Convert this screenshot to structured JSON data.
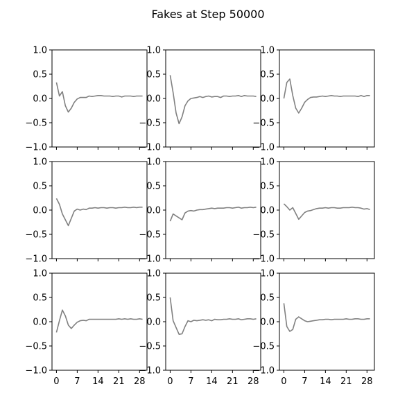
{
  "figure": {
    "title": "Fakes at Step 50000"
  },
  "chart_data": {
    "type": "line",
    "title": "Fakes at Step 50000",
    "layout": "3x3 grid of small line plots",
    "line_color": "#808080",
    "xlim": [
      -1.5,
      30.5
    ],
    "ylim": [
      -1.0,
      1.0
    ],
    "x_ticks": [
      0,
      7,
      14,
      21,
      28
    ],
    "y_ticks": [
      1.0,
      0.5,
      0.0,
      -0.5,
      -1.0
    ],
    "y_tick_labels": [
      "1.0",
      "0.5",
      "0.0",
      "−0.5",
      "−1.0"
    ],
    "x_tick_labels_row": 2,
    "grid": false,
    "legend": false,
    "panels": [
      {
        "row": 0,
        "col": 0,
        "values": [
          0.33,
          0.05,
          0.14,
          -0.15,
          -0.28,
          -0.2,
          -0.08,
          -0.01,
          0.02,
          0.02,
          0.02,
          0.05,
          0.04,
          0.05,
          0.06,
          0.06,
          0.05,
          0.05,
          0.05,
          0.04,
          0.05,
          0.05,
          0.03,
          0.05,
          0.05,
          0.05,
          0.04,
          0.05,
          0.05,
          0.05
        ]
      },
      {
        "row": 0,
        "col": 1,
        "values": [
          0.48,
          0.12,
          -0.3,
          -0.52,
          -0.38,
          -0.15,
          -0.05,
          0.0,
          0.01,
          0.02,
          0.04,
          0.02,
          0.04,
          0.05,
          0.03,
          0.04,
          0.04,
          0.02,
          0.05,
          0.05,
          0.04,
          0.05,
          0.05,
          0.06,
          0.04,
          0.06,
          0.05,
          0.05,
          0.05,
          0.04
        ]
      },
      {
        "row": 0,
        "col": 2,
        "values": [
          0.0,
          0.33,
          0.4,
          0.06,
          -0.2,
          -0.3,
          -0.2,
          -0.08,
          -0.02,
          0.02,
          0.03,
          0.03,
          0.04,
          0.05,
          0.04,
          0.05,
          0.06,
          0.05,
          0.05,
          0.04,
          0.05,
          0.05,
          0.05,
          0.05,
          0.05,
          0.04,
          0.06,
          0.04,
          0.06,
          0.06
        ]
      },
      {
        "row": 1,
        "col": 0,
        "values": [
          0.24,
          0.12,
          -0.08,
          -0.2,
          -0.32,
          -0.17,
          -0.02,
          0.02,
          0.0,
          0.02,
          0.01,
          0.04,
          0.04,
          0.05,
          0.04,
          0.05,
          0.05,
          0.04,
          0.05,
          0.05,
          0.04,
          0.05,
          0.05,
          0.06,
          0.05,
          0.05,
          0.06,
          0.05,
          0.06,
          0.06
        ]
      },
      {
        "row": 1,
        "col": 1,
        "values": [
          -0.23,
          -0.08,
          -0.12,
          -0.16,
          -0.2,
          -0.06,
          -0.02,
          -0.01,
          -0.02,
          0.0,
          0.01,
          0.01,
          0.02,
          0.03,
          0.04,
          0.03,
          0.04,
          0.04,
          0.04,
          0.05,
          0.05,
          0.04,
          0.05,
          0.06,
          0.04,
          0.05,
          0.05,
          0.06,
          0.05,
          0.06
        ]
      },
      {
        "row": 1,
        "col": 2,
        "values": [
          0.13,
          0.07,
          0.0,
          0.05,
          -0.07,
          -0.19,
          -0.12,
          -0.05,
          -0.02,
          -0.01,
          0.01,
          0.03,
          0.04,
          0.04,
          0.05,
          0.04,
          0.05,
          0.05,
          0.04,
          0.04,
          0.05,
          0.05,
          0.05,
          0.06,
          0.05,
          0.05,
          0.04,
          0.02,
          0.03,
          0.01
        ]
      },
      {
        "row": 2,
        "col": 0,
        "values": [
          -0.22,
          0.02,
          0.24,
          0.12,
          -0.07,
          -0.14,
          -0.07,
          -0.01,
          0.02,
          0.03,
          0.02,
          0.05,
          0.05,
          0.05,
          0.05,
          0.05,
          0.05,
          0.05,
          0.05,
          0.05,
          0.05,
          0.06,
          0.05,
          0.06,
          0.05,
          0.06,
          0.05,
          0.05,
          0.06,
          0.05
        ]
      },
      {
        "row": 2,
        "col": 1,
        "values": [
          0.5,
          0.02,
          -0.12,
          -0.26,
          -0.25,
          -0.1,
          0.02,
          0.0,
          0.03,
          0.02,
          0.03,
          0.04,
          0.03,
          0.04,
          0.02,
          0.05,
          0.04,
          0.04,
          0.05,
          0.05,
          0.06,
          0.05,
          0.05,
          0.06,
          0.04,
          0.05,
          0.06,
          0.06,
          0.05,
          0.06
        ]
      },
      {
        "row": 2,
        "col": 2,
        "values": [
          0.38,
          -0.1,
          -0.2,
          -0.16,
          0.05,
          0.1,
          0.06,
          0.02,
          0.0,
          0.01,
          0.02,
          0.03,
          0.04,
          0.04,
          0.05,
          0.05,
          0.04,
          0.05,
          0.05,
          0.05,
          0.05,
          0.06,
          0.05,
          0.05,
          0.06,
          0.06,
          0.05,
          0.05,
          0.06,
          0.06
        ]
      }
    ]
  }
}
